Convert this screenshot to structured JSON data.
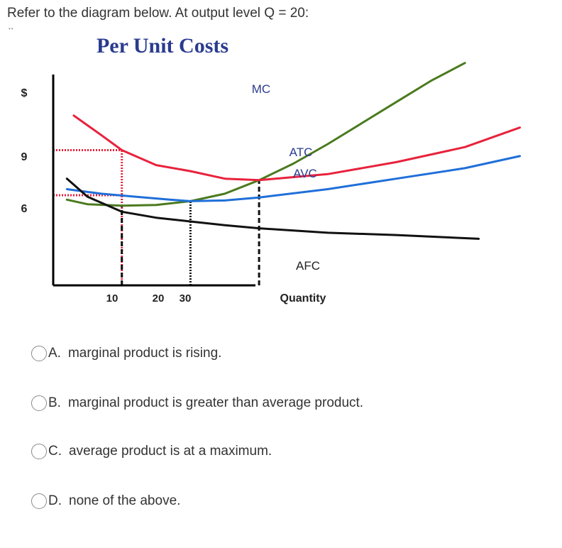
{
  "question": "Refer to the diagram below. At output level Q = 20:",
  "question_marker": "••",
  "chart_data": {
    "type": "line",
    "title": "Per Unit Costs",
    "ylabel": "$",
    "xlabel": "Quantity",
    "x_ticks": [
      "10",
      "20",
      "30"
    ],
    "y_ticks": [
      "9",
      "6"
    ],
    "series": [
      {
        "name": "MC",
        "color": "#4a7a1e",
        "points": [
          [
            2,
            5.7
          ],
          [
            5,
            5.4
          ],
          [
            10,
            5.3
          ],
          [
            15,
            5.35
          ],
          [
            20,
            5.6
          ],
          [
            25,
            6.1
          ],
          [
            30,
            7.0
          ],
          [
            35,
            8.1
          ],
          [
            40,
            9.4
          ],
          [
            45,
            10.8
          ],
          [
            50,
            12.2
          ],
          [
            55,
            13.6
          ],
          [
            60,
            14.8
          ]
        ]
      },
      {
        "name": "ATC",
        "color": "#e8223c",
        "points": [
          [
            3,
            11.3
          ],
          [
            7,
            10.0
          ],
          [
            10,
            9.0
          ],
          [
            15,
            8.0
          ],
          [
            20,
            7.6
          ],
          [
            25,
            7.1
          ],
          [
            30,
            7.0
          ],
          [
            40,
            7.4
          ],
          [
            50,
            8.2
          ],
          [
            60,
            9.2
          ],
          [
            68,
            10.5
          ]
        ]
      },
      {
        "name": "AVC",
        "color": "#1f6fd9",
        "points": [
          [
            2,
            6.4
          ],
          [
            7,
            6.1
          ],
          [
            12,
            5.9
          ],
          [
            17,
            5.7
          ],
          [
            20,
            5.6
          ],
          [
            25,
            5.65
          ],
          [
            30,
            5.85
          ],
          [
            40,
            6.4
          ],
          [
            50,
            7.1
          ],
          [
            60,
            7.8
          ],
          [
            68,
            8.6
          ]
        ]
      },
      {
        "name": "AFC",
        "color": "#111111",
        "points": [
          [
            2,
            7.1
          ],
          [
            5,
            5.9
          ],
          [
            10,
            4.9
          ],
          [
            15,
            4.5
          ],
          [
            20,
            4.25
          ],
          [
            25,
            4.0
          ],
          [
            30,
            3.8
          ],
          [
            40,
            3.5
          ],
          [
            50,
            3.35
          ],
          [
            62,
            3.1
          ]
        ]
      }
    ],
    "annotations": [
      {
        "type": "vline",
        "x": 10,
        "y_to": 9,
        "color": "#e8223c",
        "style": "dotted"
      },
      {
        "type": "hline",
        "y": 9,
        "x_to": 10,
        "color": "#e8223c",
        "style": "dotted"
      },
      {
        "type": "hline",
        "y": 6,
        "x_to": 10,
        "color": "#e8223c",
        "style": "dotted"
      },
      {
        "type": "vline",
        "x": 10,
        "y_to": 5.3,
        "color": "#111111",
        "style": "dashed"
      },
      {
        "type": "vline",
        "x": 20,
        "y_to": 5.6,
        "color": "#111111",
        "style": "dotted"
      },
      {
        "type": "vline",
        "x": 30,
        "y_to": 7.0,
        "color": "#111111",
        "style": "dashed"
      }
    ],
    "grid": false,
    "legend": "inline labels at right"
  },
  "options": [
    {
      "letter": "A.",
      "text": "marginal product is rising."
    },
    {
      "letter": "B.",
      "text": "marginal product is greater than average product."
    },
    {
      "letter": "C.",
      "text": "average product is at a maximum."
    },
    {
      "letter": "D.",
      "text": "none of the above."
    }
  ]
}
